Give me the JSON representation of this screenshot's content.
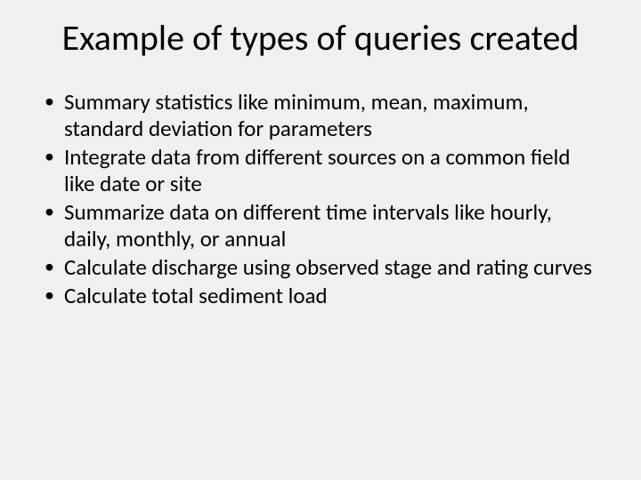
{
  "slide": {
    "title": "Example of types of queries created",
    "title_fontsize": 40,
    "title_color": "#000000",
    "title_align": "center",
    "background_color": "#f0f0f0",
    "text_color": "#000000",
    "body_fontsize": 25,
    "bullet_char": "•",
    "bullets": [
      "Summary statistics like minimum, mean, maximum, standard deviation for parameters",
      "Integrate data from different sources on a common field like date or site",
      "Summarize data on different time intervals like hourly, daily, monthly, or annual",
      "Calculate discharge using observed stage and rating curves",
      "Calculate total sediment load"
    ]
  }
}
